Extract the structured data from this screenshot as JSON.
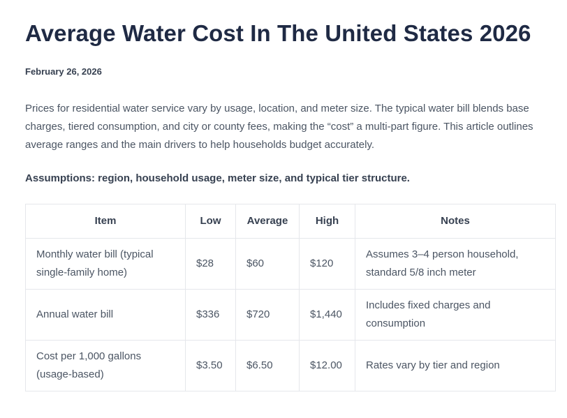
{
  "article": {
    "title": "Average Water Cost In The United States 2026",
    "date": "February 26, 2026",
    "intro": "Prices for residential water service vary by usage, location, and meter size. The typical water bill blends base charges, tiered consumption, and city or county fees, making the “cost” a multi-part figure. This article outlines average ranges and the main drivers to help households budget accurately.",
    "assumptions": "Assumptions: region, household usage, meter size, and typical tier structure."
  },
  "table": {
    "headers": {
      "item": "Item",
      "low": "Low",
      "average": "Average",
      "high": "High",
      "notes": "Notes"
    },
    "rows": [
      {
        "item": "Monthly water bill (typical single-family home)",
        "low": "$28",
        "average": "$60",
        "high": "$120",
        "notes": "Assumes 3–4 person household, standard 5/8 inch meter"
      },
      {
        "item": "Annual water bill",
        "low": "$336",
        "average": "$720",
        "high": "$1,440",
        "notes": "Includes fixed charges and consumption"
      },
      {
        "item": "Cost per 1,000 gallons (usage-based)",
        "low": "$3.50",
        "average": "$6.50",
        "high": "$12.00",
        "notes": "Rates vary by tier and region"
      }
    ]
  }
}
